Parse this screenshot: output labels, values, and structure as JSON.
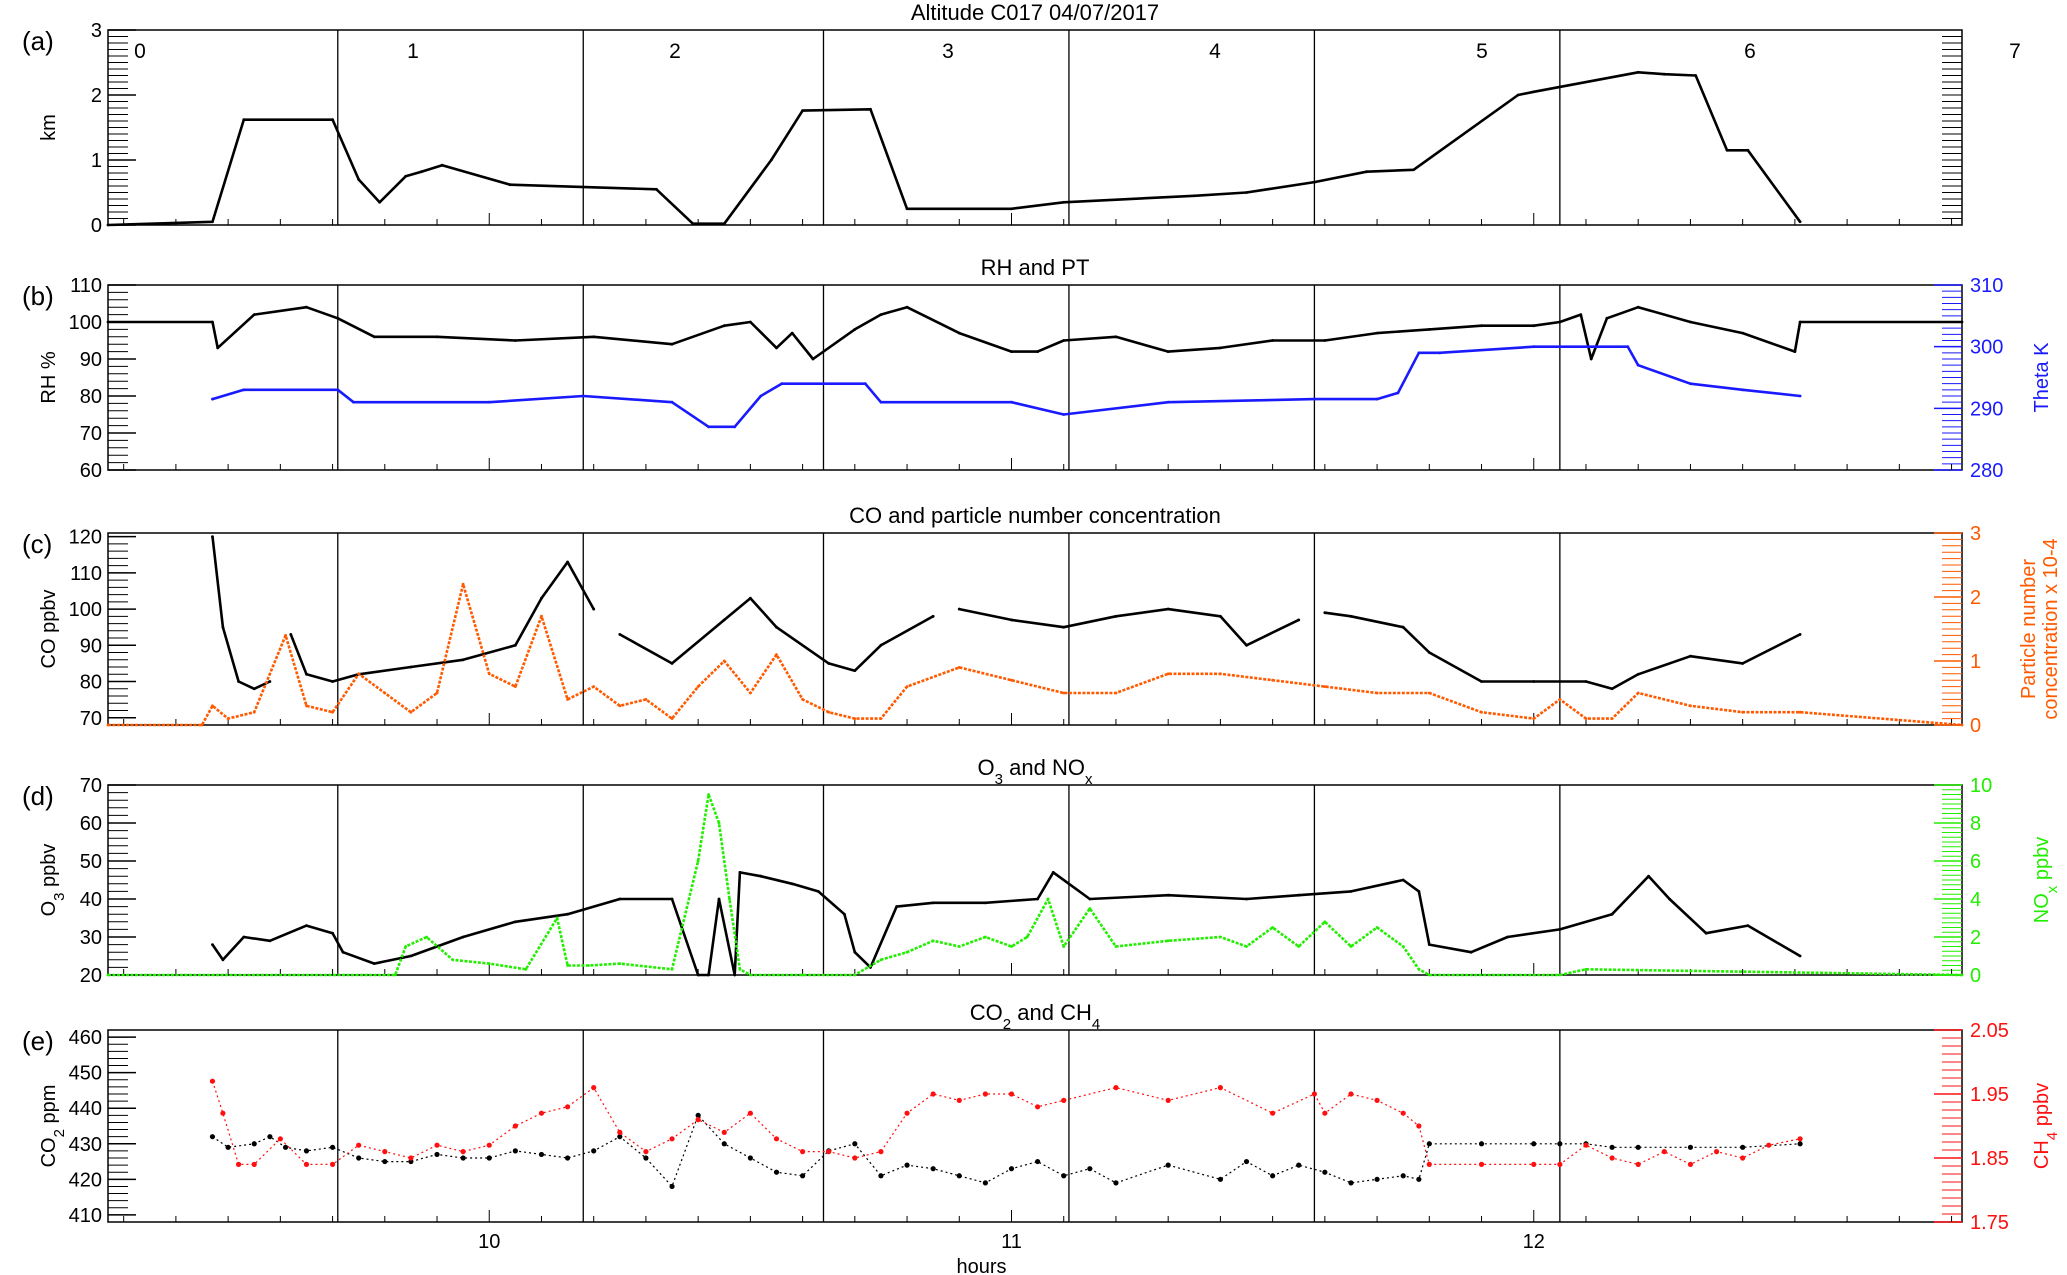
{
  "x_axis": {
    "label": "hours",
    "range": [
      9.27,
      12.82
    ],
    "ticks": [
      10,
      11,
      12
    ],
    "tick_labels": [
      "10",
      "11",
      "12"
    ],
    "segment_boundaries": [
      9.71,
      10.18,
      10.64,
      11.11,
      11.58,
      12.05
    ],
    "segment_labels": [
      "0",
      "1",
      "2",
      "3",
      "4",
      "5",
      "6",
      "7"
    ]
  },
  "colors": {
    "black": "#000000",
    "theta": "#1a1aff",
    "particle": "#ff5a00",
    "nox": "#22ee00",
    "ch4": "#ff1010"
  },
  "chart_data": [
    {
      "type": "line",
      "panel_label": "(a)",
      "title": "Altitude   C017   04/07/2017",
      "ylabel": "km",
      "ylim": [
        0,
        3
      ],
      "yticks": [
        0,
        1,
        2,
        3
      ],
      "grid": false,
      "series": [
        {
          "color_key": "black",
          "x": [
            9.27,
            9.47,
            9.53,
            9.7,
            9.75,
            9.79,
            9.84,
            9.87,
            9.91,
            10.04,
            10.32,
            10.39,
            10.45,
            10.54,
            10.6,
            10.73,
            10.8,
            11.0,
            11.1,
            11.35,
            11.45,
            11.58,
            11.68,
            11.77,
            11.97,
            12.0,
            12.2,
            12.25,
            12.31,
            12.37,
            12.41,
            12.51
          ],
          "y": [
            0.0,
            0.05,
            1.62,
            1.62,
            0.7,
            0.35,
            0.75,
            0.82,
            0.92,
            0.62,
            0.55,
            0.02,
            0.02,
            1.0,
            1.76,
            1.78,
            0.25,
            0.25,
            0.35,
            0.45,
            0.5,
            0.66,
            0.82,
            0.85,
            2.0,
            2.05,
            2.35,
            2.32,
            2.3,
            1.15,
            1.15,
            0.05
          ]
        }
      ]
    },
    {
      "type": "line",
      "panel_label": "(b)",
      "title": "RH and PT",
      "ylabel": "RH %",
      "ylim": [
        60,
        110
      ],
      "yticks": [
        60,
        70,
        80,
        90,
        100,
        110
      ],
      "y2label": "Theta K",
      "y2lim": [
        280,
        310
      ],
      "y2ticks": [
        280,
        290,
        300,
        310
      ],
      "grid": false,
      "series": [
        {
          "axis": "left",
          "color_key": "black",
          "x": [
            9.27,
            9.47,
            9.48,
            9.55,
            9.65,
            9.71,
            9.78,
            9.9,
            10.05,
            10.2,
            10.35,
            10.45,
            10.5,
            10.55,
            10.58,
            10.62,
            10.7,
            10.75,
            10.8,
            10.9,
            11.0,
            11.05,
            11.1,
            11.2,
            11.3,
            11.4,
            11.5,
            11.6,
            11.7,
            11.8,
            11.9,
            12.0,
            12.05,
            12.09,
            12.11,
            12.14,
            12.2,
            12.3,
            12.4,
            12.5,
            12.51,
            12.82
          ],
          "y": [
            100,
            100,
            93,
            102,
            104,
            101,
            96,
            96,
            95,
            96,
            94,
            99,
            100,
            93,
            97,
            90,
            98,
            102,
            104,
            97,
            92,
            92,
            95,
            96,
            92,
            93,
            95,
            95,
            97,
            98,
            99,
            99,
            100,
            102,
            90,
            101,
            104,
            100,
            97,
            92,
            100,
            100
          ]
        },
        {
          "axis": "right",
          "color_key": "theta",
          "x": [
            9.47,
            9.53,
            9.71,
            9.74,
            10.0,
            10.18,
            10.35,
            10.42,
            10.47,
            10.52,
            10.56,
            10.64,
            10.72,
            10.75,
            11.0,
            11.1,
            11.3,
            11.58,
            11.7,
            11.74,
            11.78,
            11.82,
            12.0,
            12.18,
            12.2,
            12.3,
            12.4,
            12.51
          ],
          "y": [
            291.5,
            293,
            293,
            291,
            291,
            292,
            291,
            287,
            287,
            292,
            294,
            294,
            294,
            291,
            291,
            289,
            291,
            291.5,
            291.5,
            292.5,
            299,
            299,
            300,
            300,
            297,
            294,
            293,
            292
          ]
        }
      ]
    },
    {
      "type": "line",
      "panel_label": "(c)",
      "title": "CO and particle number concentration",
      "ylabel": "CO ppbv",
      "ylim": [
        68,
        121
      ],
      "yticks": [
        70,
        80,
        90,
        100,
        110,
        120
      ],
      "y2label": "Particle number concentration x 10-4",
      "y2label_lines": [
        "Particle number",
        "concentration x 10-4"
      ],
      "y2lim": [
        0,
        3
      ],
      "y2ticks": [
        0,
        1,
        2,
        3
      ],
      "grid": false,
      "series": [
        {
          "axis": "left",
          "color_key": "black",
          "breaks": [
            9.6,
            10.22,
            10.9,
            11.6
          ],
          "x": [
            9.47,
            9.49,
            9.52,
            9.55,
            9.58,
            9.62,
            9.65,
            9.7,
            9.75,
            9.85,
            9.95,
            10.05,
            10.1,
            10.15,
            10.2,
            10.25,
            10.35,
            10.45,
            10.5,
            10.55,
            10.65,
            10.7,
            10.75,
            10.85,
            10.9,
            11.0,
            11.1,
            11.2,
            11.3,
            11.4,
            11.45,
            11.55,
            11.6,
            11.65,
            11.75,
            11.8,
            11.9,
            12.0,
            12.1,
            12.15,
            12.2,
            12.3,
            12.4,
            12.51
          ],
          "y": [
            120,
            95,
            80,
            78,
            80,
            93,
            82,
            80,
            82,
            84,
            86,
            90,
            103,
            113,
            100,
            93,
            85,
            97,
            103,
            95,
            85,
            83,
            90,
            98,
            100,
            97,
            95,
            98,
            100,
            98,
            90,
            97,
            99,
            98,
            95,
            88,
            80,
            80,
            80,
            78,
            82,
            87,
            85,
            93
          ]
        },
        {
          "axis": "right",
          "color_key": "particle",
          "x": [
            9.27,
            9.45,
            9.47,
            9.5,
            9.55,
            9.61,
            9.65,
            9.7,
            9.75,
            9.8,
            9.85,
            9.9,
            9.95,
            10.0,
            10.05,
            10.1,
            10.15,
            10.2,
            10.25,
            10.3,
            10.35,
            10.4,
            10.45,
            10.5,
            10.55,
            10.6,
            10.65,
            10.7,
            10.75,
            10.8,
            10.9,
            11.0,
            11.1,
            11.2,
            11.3,
            11.4,
            11.5,
            11.6,
            11.7,
            11.8,
            11.9,
            12.0,
            12.05,
            12.1,
            12.15,
            12.2,
            12.3,
            12.4,
            12.51,
            12.82
          ],
          "y": [
            0,
            0,
            0.3,
            0.1,
            0.2,
            1.4,
            0.3,
            0.2,
            0.8,
            0.5,
            0.2,
            0.5,
            2.2,
            0.8,
            0.6,
            1.7,
            0.4,
            0.6,
            0.3,
            0.4,
            0.1,
            0.6,
            1.0,
            0.5,
            1.1,
            0.4,
            0.2,
            0.1,
            0.1,
            0.6,
            0.9,
            0.7,
            0.5,
            0.5,
            0.8,
            0.8,
            0.7,
            0.6,
            0.5,
            0.5,
            0.2,
            0.1,
            0.4,
            0.1,
            0.1,
            0.5,
            0.3,
            0.2,
            0.2,
            0.0
          ]
        }
      ]
    },
    {
      "type": "line",
      "panel_label": "(d)",
      "title": "O3 and NOx",
      "title_parts": [
        "O",
        "3",
        " and NO",
        "x"
      ],
      "ylabel": "O3 ppbv",
      "ylabel_parts": [
        "O",
        "3",
        " ppbv"
      ],
      "ylim": [
        20,
        70
      ],
      "yticks": [
        20,
        30,
        40,
        50,
        60,
        70
      ],
      "y2label": "NOx ppbv",
      "y2label_parts": [
        "NO",
        "x",
        " ppbv"
      ],
      "y2lim": [
        0,
        10
      ],
      "y2ticks": [
        0,
        2,
        4,
        6,
        8,
        10
      ],
      "grid": false,
      "series": [
        {
          "axis": "left",
          "color_key": "black",
          "x": [
            9.47,
            9.49,
            9.53,
            9.58,
            9.65,
            9.7,
            9.72,
            9.78,
            9.85,
            9.95,
            10.05,
            10.15,
            10.25,
            10.35,
            10.4,
            10.42,
            10.44,
            10.47,
            10.48,
            10.52,
            10.58,
            10.63,
            10.68,
            10.7,
            10.73,
            10.78,
            10.85,
            10.95,
            11.05,
            11.08,
            11.15,
            11.3,
            11.45,
            11.55,
            11.65,
            11.75,
            11.78,
            11.8,
            11.88,
            11.95,
            12.05,
            12.15,
            12.22,
            12.26,
            12.33,
            12.41,
            12.51
          ],
          "y": [
            28,
            24,
            30,
            29,
            33,
            31,
            26,
            23,
            25,
            30,
            34,
            36,
            40,
            40,
            20,
            20,
            40,
            20,
            47,
            46,
            44,
            42,
            36,
            26,
            22,
            38,
            39,
            39,
            40,
            47,
            40,
            41,
            40,
            41,
            42,
            45,
            42,
            28,
            26,
            30,
            32,
            36,
            46,
            40,
            31,
            33,
            25
          ]
        },
        {
          "axis": "right",
          "color_key": "nox",
          "x": [
            9.27,
            9.82,
            9.84,
            9.88,
            9.93,
            10.0,
            10.07,
            10.13,
            10.15,
            10.19,
            10.25,
            10.35,
            10.4,
            10.42,
            10.44,
            10.46,
            10.48,
            10.5,
            10.6,
            10.7,
            10.75,
            10.8,
            10.85,
            10.9,
            10.95,
            11.0,
            11.03,
            11.07,
            11.1,
            11.15,
            11.2,
            11.3,
            11.4,
            11.45,
            11.5,
            11.55,
            11.6,
            11.65,
            11.7,
            11.75,
            11.78,
            11.8,
            12.05,
            12.1,
            12.82
          ],
          "y": [
            0,
            0,
            1.5,
            2.0,
            0.8,
            0.6,
            0.3,
            3.0,
            0.5,
            0.5,
            0.6,
            0.3,
            6.0,
            9.5,
            8.0,
            4.0,
            0.3,
            0,
            0,
            0,
            0.8,
            1.2,
            1.8,
            1.5,
            2.0,
            1.5,
            2.0,
            4.0,
            1.5,
            3.5,
            1.5,
            1.8,
            2.0,
            1.5,
            2.5,
            1.5,
            2.8,
            1.5,
            2.5,
            1.5,
            0.3,
            0,
            0,
            0.3,
            0
          ]
        }
      ]
    },
    {
      "type": "scatter",
      "panel_label": "(e)",
      "title": "CO2 and CH4",
      "title_parts": [
        "CO",
        "2",
        " and CH",
        "4"
      ],
      "ylabel": "CO2 ppm",
      "ylabel_parts": [
        "CO",
        "2",
        " ppm"
      ],
      "ylim": [
        408,
        462
      ],
      "yticks": [
        410,
        420,
        430,
        440,
        450,
        460
      ],
      "y2label": "CH4 ppbv",
      "y2label_parts": [
        "CH",
        "4",
        " ppbv"
      ],
      "y2lim": [
        1.75,
        2.05
      ],
      "y2ticks": [
        1.75,
        1.85,
        1.95,
        2.05
      ],
      "grid": false,
      "series": [
        {
          "axis": "left",
          "color_key": "black",
          "x": [
            9.47,
            9.5,
            9.55,
            9.58,
            9.61,
            9.65,
            9.7,
            9.75,
            9.8,
            9.85,
            9.9,
            9.95,
            10.0,
            10.05,
            10.1,
            10.15,
            10.2,
            10.25,
            10.3,
            10.35,
            10.4,
            10.45,
            10.5,
            10.55,
            10.6,
            10.65,
            10.7,
            10.75,
            10.8,
            10.85,
            10.9,
            10.95,
            11.0,
            11.05,
            11.1,
            11.15,
            11.2,
            11.3,
            11.4,
            11.45,
            11.5,
            11.55,
            11.6,
            11.65,
            11.7,
            11.75,
            11.78,
            11.8,
            11.9,
            12.0,
            12.05,
            12.1,
            12.15,
            12.2,
            12.3,
            12.4,
            12.51
          ],
          "y": [
            432,
            429,
            430,
            432,
            429,
            428,
            429,
            426,
            425,
            425,
            427,
            426,
            426,
            428,
            427,
            426,
            428,
            432,
            426,
            418,
            438,
            430,
            426,
            422,
            421,
            428,
            430,
            421,
            424,
            423,
            421,
            419,
            423,
            425,
            421,
            423,
            419,
            424,
            420,
            425,
            421,
            424,
            422,
            419,
            420,
            421,
            420,
            430,
            430,
            430,
            430,
            430,
            429,
            429,
            429,
            429,
            430
          ]
        },
        {
          "axis": "right",
          "color_key": "ch4",
          "x": [
            9.47,
            9.49,
            9.52,
            9.55,
            9.6,
            9.65,
            9.7,
            9.75,
            9.8,
            9.85,
            9.9,
            9.95,
            10.0,
            10.05,
            10.1,
            10.15,
            10.2,
            10.25,
            10.3,
            10.35,
            10.4,
            10.45,
            10.5,
            10.55,
            10.6,
            10.65,
            10.7,
            10.75,
            10.8,
            10.85,
            10.9,
            10.95,
            11.0,
            11.05,
            11.1,
            11.2,
            11.3,
            11.4,
            11.5,
            11.58,
            11.6,
            11.65,
            11.7,
            11.75,
            11.78,
            11.8,
            11.9,
            12.0,
            12.05,
            12.1,
            12.15,
            12.2,
            12.25,
            12.3,
            12.35,
            12.4,
            12.45,
            12.51
          ],
          "y": [
            1.97,
            1.92,
            1.84,
            1.84,
            1.88,
            1.84,
            1.84,
            1.87,
            1.86,
            1.85,
            1.87,
            1.86,
            1.87,
            1.9,
            1.92,
            1.93,
            1.96,
            1.89,
            1.86,
            1.88,
            1.91,
            1.89,
            1.92,
            1.88,
            1.86,
            1.86,
            1.85,
            1.86,
            1.92,
            1.95,
            1.94,
            1.95,
            1.95,
            1.93,
            1.94,
            1.96,
            1.94,
            1.96,
            1.92,
            1.95,
            1.92,
            1.95,
            1.94,
            1.92,
            1.9,
            1.84,
            1.84,
            1.84,
            1.84,
            1.87,
            1.85,
            1.84,
            1.86,
            1.84,
            1.86,
            1.85,
            1.87,
            1.88
          ]
        }
      ]
    }
  ]
}
